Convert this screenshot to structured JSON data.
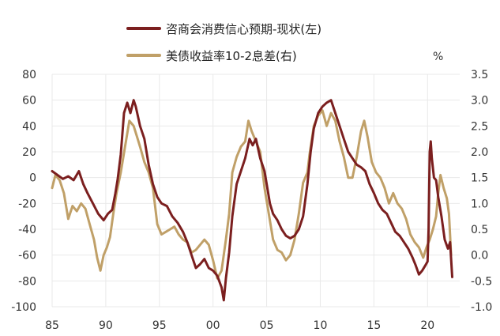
{
  "chart_data": {
    "type": "line",
    "title": "",
    "xlabel": "",
    "ylabel_left": "",
    "ylabel_right": "%",
    "x_ticks": [
      "85",
      "90",
      "95",
      "00",
      "05",
      "10",
      "15",
      "20"
    ],
    "x_tick_years": [
      1985,
      1990,
      1995,
      2000,
      2005,
      2010,
      2015,
      2020
    ],
    "xlim": [
      1985,
      2023
    ],
    "ylim_left": [
      -100,
      80
    ],
    "ylim_right": [
      -1.0,
      3.5
    ],
    "y_ticks_left": [
      "80",
      "60",
      "40",
      "20",
      "0",
      "-20",
      "-40",
      "-60",
      "-80",
      "-100"
    ],
    "y_tick_values_left": [
      80,
      60,
      40,
      20,
      0,
      -20,
      -40,
      -60,
      -80,
      -100
    ],
    "y_ticks_right": [
      "3.5",
      "3.0",
      "2.5",
      "2.0",
      "1.5",
      "1.0",
      "0.5",
      "0.0",
      "-0.5",
      "-1.0"
    ],
    "y_tick_values_right": [
      3.5,
      3.0,
      2.5,
      2.0,
      1.5,
      1.0,
      0.5,
      0.0,
      -0.5,
      -1.0
    ],
    "series": [
      {
        "name": "咨商会消费信心预期-现状(左)",
        "axis": "left",
        "color": "#7b1f1f",
        "points": [
          [
            1985.0,
            5
          ],
          [
            1985.5,
            2
          ],
          [
            1986.0,
            -1
          ],
          [
            1986.5,
            1
          ],
          [
            1987.0,
            -2
          ],
          [
            1987.5,
            5
          ],
          [
            1987.9,
            -5
          ],
          [
            1988.3,
            -12
          ],
          [
            1988.8,
            -20
          ],
          [
            1989.3,
            -28
          ],
          [
            1989.8,
            -33
          ],
          [
            1990.2,
            -28
          ],
          [
            1990.6,
            -25
          ],
          [
            1990.9,
            -12
          ],
          [
            1991.1,
            -2
          ],
          [
            1991.4,
            18
          ],
          [
            1991.7,
            50
          ],
          [
            1992.0,
            58
          ],
          [
            1992.3,
            50
          ],
          [
            1992.6,
            60
          ],
          [
            1992.8,
            55
          ],
          [
            1993.2,
            40
          ],
          [
            1993.6,
            30
          ],
          [
            1994.0,
            10
          ],
          [
            1994.4,
            -5
          ],
          [
            1994.8,
            -15
          ],
          [
            1995.2,
            -20
          ],
          [
            1995.7,
            -22
          ],
          [
            1996.2,
            -30
          ],
          [
            1996.7,
            -35
          ],
          [
            1997.2,
            -42
          ],
          [
            1997.6,
            -50
          ],
          [
            1998.0,
            -60
          ],
          [
            1998.4,
            -70
          ],
          [
            1998.8,
            -67
          ],
          [
            1999.2,
            -63
          ],
          [
            1999.6,
            -70
          ],
          [
            2000.0,
            -72
          ],
          [
            2000.4,
            -76
          ],
          [
            2000.8,
            -85
          ],
          [
            2001.0,
            -95
          ],
          [
            2001.2,
            -78
          ],
          [
            2001.5,
            -58
          ],
          [
            2001.8,
            -30
          ],
          [
            2002.2,
            -5
          ],
          [
            2002.6,
            5
          ],
          [
            2003.0,
            15
          ],
          [
            2003.4,
            30
          ],
          [
            2003.7,
            25
          ],
          [
            2004.0,
            30
          ],
          [
            2004.4,
            15
          ],
          [
            2004.8,
            5
          ],
          [
            2005.0,
            -5
          ],
          [
            2005.3,
            -20
          ],
          [
            2005.6,
            -28
          ],
          [
            2006.0,
            -33
          ],
          [
            2006.4,
            -40
          ],
          [
            2006.8,
            -45
          ],
          [
            2007.2,
            -47
          ],
          [
            2007.6,
            -45
          ],
          [
            2008.0,
            -40
          ],
          [
            2008.4,
            -30
          ],
          [
            2008.8,
            -5
          ],
          [
            2009.1,
            20
          ],
          [
            2009.4,
            38
          ],
          [
            2009.8,
            50
          ],
          [
            2010.2,
            55
          ],
          [
            2010.6,
            58
          ],
          [
            2011.0,
            60
          ],
          [
            2011.4,
            50
          ],
          [
            2011.8,
            40
          ],
          [
            2012.2,
            30
          ],
          [
            2012.6,
            20
          ],
          [
            2013.0,
            15
          ],
          [
            2013.4,
            10
          ],
          [
            2013.8,
            8
          ],
          [
            2014.2,
            5
          ],
          [
            2014.6,
            -5
          ],
          [
            2015.0,
            -12
          ],
          [
            2015.4,
            -20
          ],
          [
            2015.8,
            -25
          ],
          [
            2016.2,
            -28
          ],
          [
            2016.6,
            -35
          ],
          [
            2017.0,
            -42
          ],
          [
            2017.4,
            -45
          ],
          [
            2017.8,
            -50
          ],
          [
            2018.2,
            -55
          ],
          [
            2018.6,
            -62
          ],
          [
            2018.9,
            -68
          ],
          [
            2019.2,
            -75
          ],
          [
            2019.5,
            -72
          ],
          [
            2019.8,
            -68
          ],
          [
            2020.0,
            -65
          ],
          [
            2020.1,
            -40
          ],
          [
            2020.2,
            20
          ],
          [
            2020.3,
            28
          ],
          [
            2020.4,
            15
          ],
          [
            2020.6,
            0
          ],
          [
            2020.8,
            -2
          ],
          [
            2021.0,
            -15
          ],
          [
            2021.3,
            -30
          ],
          [
            2021.6,
            -48
          ],
          [
            2021.9,
            -55
          ],
          [
            2022.1,
            -50
          ],
          [
            2022.3,
            -77
          ]
        ]
      },
      {
        "name": "美债收益率10-2息差(右)",
        "axis": "right",
        "color": "#c0a068",
        "points": [
          [
            1985.0,
            1.3
          ],
          [
            1985.3,
            1.55
          ],
          [
            1985.7,
            1.45
          ],
          [
            1986.1,
            1.2
          ],
          [
            1986.5,
            0.7
          ],
          [
            1986.9,
            0.95
          ],
          [
            1987.3,
            0.85
          ],
          [
            1987.7,
            1.0
          ],
          [
            1988.1,
            0.9
          ],
          [
            1988.5,
            0.6
          ],
          [
            1988.9,
            0.3
          ],
          [
            1989.2,
            -0.05
          ],
          [
            1989.5,
            -0.3
          ],
          [
            1989.8,
            0.0
          ],
          [
            1990.1,
            0.15
          ],
          [
            1990.4,
            0.35
          ],
          [
            1990.7,
            0.8
          ],
          [
            1991.0,
            1.2
          ],
          [
            1991.4,
            1.6
          ],
          [
            1991.8,
            2.1
          ],
          [
            1992.2,
            2.6
          ],
          [
            1992.6,
            2.5
          ],
          [
            1992.9,
            2.3
          ],
          [
            1993.2,
            2.1
          ],
          [
            1993.6,
            1.8
          ],
          [
            1994.0,
            1.6
          ],
          [
            1994.4,
            1.3
          ],
          [
            1994.8,
            0.6
          ],
          [
            1995.2,
            0.4
          ],
          [
            1995.6,
            0.45
          ],
          [
            1996.0,
            0.5
          ],
          [
            1996.4,
            0.55
          ],
          [
            1996.8,
            0.4
          ],
          [
            1997.2,
            0.3
          ],
          [
            1997.6,
            0.25
          ],
          [
            1998.0,
            0.05
          ],
          [
            1998.4,
            0.1
          ],
          [
            1998.8,
            0.2
          ],
          [
            1999.2,
            0.3
          ],
          [
            1999.6,
            0.2
          ],
          [
            2000.0,
            -0.1
          ],
          [
            2000.4,
            -0.45
          ],
          [
            2000.8,
            -0.3
          ],
          [
            2001.2,
            0.3
          ],
          [
            2001.5,
            0.8
          ],
          [
            2001.8,
            1.6
          ],
          [
            2002.2,
            1.9
          ],
          [
            2002.6,
            2.1
          ],
          [
            2003.0,
            2.2
          ],
          [
            2003.3,
            2.6
          ],
          [
            2003.6,
            2.4
          ],
          [
            2004.0,
            2.2
          ],
          [
            2004.4,
            2.0
          ],
          [
            2004.8,
            1.3
          ],
          [
            2005.2,
            0.8
          ],
          [
            2005.6,
            0.3
          ],
          [
            2006.0,
            0.1
          ],
          [
            2006.4,
            0.05
          ],
          [
            2006.8,
            -0.1
          ],
          [
            2007.2,
            0.0
          ],
          [
            2007.6,
            0.3
          ],
          [
            2008.0,
            0.8
          ],
          [
            2008.4,
            1.4
          ],
          [
            2008.8,
            1.6
          ],
          [
            2009.0,
            1.95
          ],
          [
            2009.4,
            2.5
          ],
          [
            2009.8,
            2.7
          ],
          [
            2010.2,
            2.8
          ],
          [
            2010.6,
            2.5
          ],
          [
            2011.0,
            2.75
          ],
          [
            2011.4,
            2.6
          ],
          [
            2011.8,
            2.2
          ],
          [
            2012.2,
            1.9
          ],
          [
            2012.6,
            1.5
          ],
          [
            2013.0,
            1.5
          ],
          [
            2013.4,
            1.9
          ],
          [
            2013.8,
            2.4
          ],
          [
            2014.1,
            2.6
          ],
          [
            2014.4,
            2.3
          ],
          [
            2014.8,
            1.8
          ],
          [
            2015.2,
            1.6
          ],
          [
            2015.6,
            1.5
          ],
          [
            2016.0,
            1.3
          ],
          [
            2016.4,
            1.0
          ],
          [
            2016.8,
            1.2
          ],
          [
            2017.2,
            1.0
          ],
          [
            2017.6,
            0.9
          ],
          [
            2018.0,
            0.7
          ],
          [
            2018.4,
            0.4
          ],
          [
            2018.8,
            0.25
          ],
          [
            2019.2,
            0.15
          ],
          [
            2019.6,
            -0.05
          ],
          [
            2019.9,
            0.15
          ],
          [
            2020.2,
            0.3
          ],
          [
            2020.5,
            0.5
          ],
          [
            2020.8,
            0.75
          ],
          [
            2021.0,
            1.2
          ],
          [
            2021.2,
            1.55
          ],
          [
            2021.5,
            1.3
          ],
          [
            2021.8,
            1.1
          ],
          [
            2022.0,
            0.8
          ],
          [
            2022.2,
            0.0
          ]
        ]
      }
    ],
    "legend_position": "top-center"
  }
}
